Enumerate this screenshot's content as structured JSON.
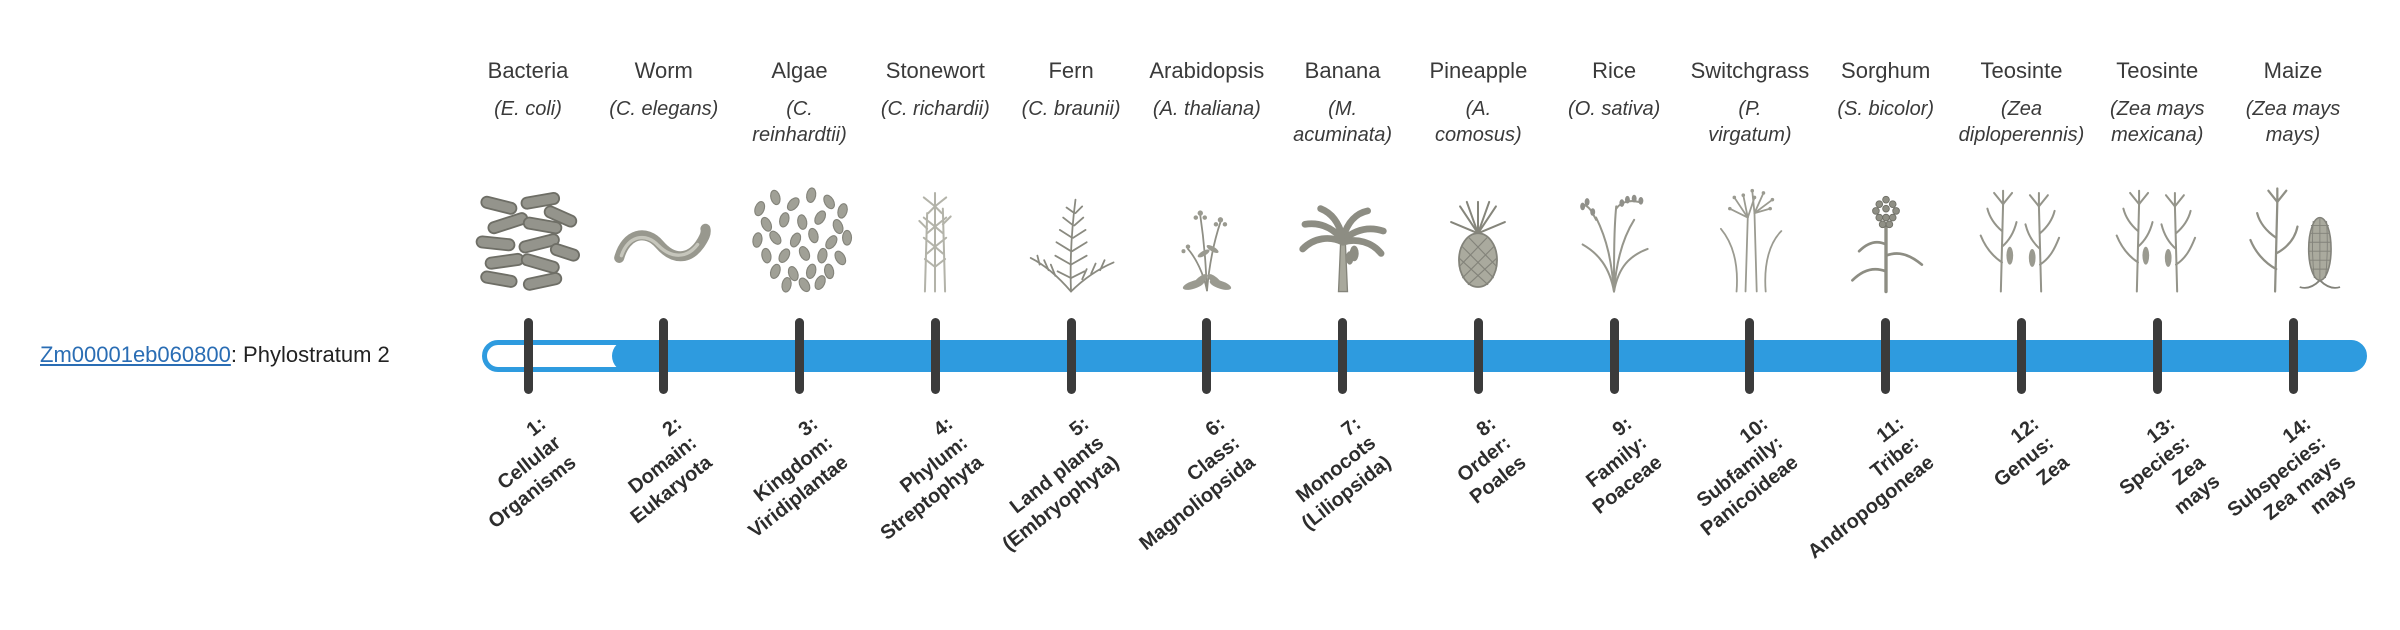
{
  "page": {
    "background": "#ffffff"
  },
  "gene": {
    "id": "Zm00001eb060800",
    "label_suffix": ": Phylostratum 2",
    "phylostratum": 2
  },
  "track": {
    "total_strata": 14,
    "filled_from_stratum": 2
  },
  "colors": {
    "bar": "#2e9bdf",
    "tick": "#3b3b3b",
    "link": "#2a6db4",
    "text": "#3a3a3a",
    "label": "#2d2d2d"
  },
  "columns": [
    {
      "index": 1,
      "common_name": "Bacteria",
      "scientific_lines": [
        "(E. coli)"
      ],
      "icon": "bacteria",
      "stratum_lines": [
        "1:",
        "Cellular",
        "Organisms"
      ]
    },
    {
      "index": 2,
      "common_name": "Worm",
      "scientific_lines": [
        "(C. elegans)"
      ],
      "icon": "worm",
      "stratum_lines": [
        "2:",
        "Domain:",
        "Eukaryota"
      ]
    },
    {
      "index": 3,
      "common_name": "Algae",
      "scientific_lines": [
        "(C.",
        "reinhardtii)"
      ],
      "icon": "algae",
      "stratum_lines": [
        "3:",
        "Kingdom:",
        "Viridiplantae"
      ]
    },
    {
      "index": 4,
      "common_name": "Stonewort",
      "scientific_lines": [
        "(C. richardii)"
      ],
      "icon": "stonewort",
      "stratum_lines": [
        "4:",
        "Phylum:",
        "Streptophyta"
      ]
    },
    {
      "index": 5,
      "common_name": "Fern",
      "scientific_lines": [
        "(C. braunii)"
      ],
      "icon": "fern",
      "stratum_lines": [
        "5:",
        "Land plants",
        "(Embryophyta)"
      ]
    },
    {
      "index": 6,
      "common_name": "Arabidopsis",
      "scientific_lines": [
        "(A. thaliana)"
      ],
      "icon": "arabidopsis",
      "stratum_lines": [
        "6:",
        "Class:",
        "Magnoliopsida"
      ]
    },
    {
      "index": 7,
      "common_name": "Banana",
      "scientific_lines": [
        "(M.",
        "acuminata)"
      ],
      "icon": "banana",
      "stratum_lines": [
        "7:",
        "Monocots",
        "(Liliopsida)"
      ]
    },
    {
      "index": 8,
      "common_name": "Pineapple",
      "scientific_lines": [
        "(A.",
        "comosus)"
      ],
      "icon": "pineapple",
      "stratum_lines": [
        "8:",
        "Order:",
        "Poales"
      ]
    },
    {
      "index": 9,
      "common_name": "Rice",
      "scientific_lines": [
        "(O. sativa)"
      ],
      "icon": "rice",
      "stratum_lines": [
        "9:",
        "Family:",
        "Poaceae"
      ]
    },
    {
      "index": 10,
      "common_name": "Switchgrass",
      "scientific_lines": [
        "(P.",
        "virgatum)"
      ],
      "icon": "switchgrass",
      "stratum_lines": [
        "10:",
        "Subfamily:",
        "Panicoideae"
      ]
    },
    {
      "index": 11,
      "common_name": "Sorghum",
      "scientific_lines": [
        "(S. bicolor)"
      ],
      "icon": "sorghum",
      "stratum_lines": [
        "11:",
        "Tribe:",
        "Andropogoneae"
      ]
    },
    {
      "index": 12,
      "common_name": "Teosinte",
      "scientific_lines": [
        "(Zea",
        "diploperennis)"
      ],
      "icon": "teosinte",
      "stratum_lines": [
        "12:",
        "Genus:",
        "Zea"
      ]
    },
    {
      "index": 13,
      "common_name": "Teosinte",
      "scientific_lines": [
        "(Zea mays",
        "mexicana)"
      ],
      "icon": "teosinte",
      "stratum_lines": [
        "13:",
        "Species:",
        "Zea",
        "mays"
      ]
    },
    {
      "index": 14,
      "common_name": "Maize",
      "scientific_lines": [
        "(Zea mays",
        "mays)"
      ],
      "icon": "maize",
      "stratum_lines": [
        "14:",
        "Subspecies:",
        "Zea mays",
        "mays"
      ]
    }
  ]
}
